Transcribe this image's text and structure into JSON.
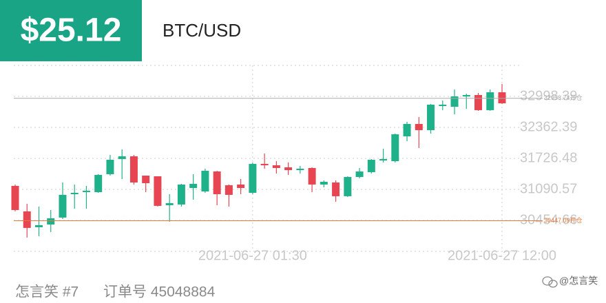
{
  "header": {
    "price": "$25.12",
    "symbol": "BTC/USD"
  },
  "footer": {
    "user": "怎言笑 #7",
    "order": "订单号 45048884",
    "watermark": "@怎言笑"
  },
  "chart_data": {
    "type": "candlestick",
    "categories": [
      null,
      null,
      null,
      null,
      null,
      null,
      null,
      null,
      null,
      null,
      null,
      null,
      null,
      null,
      null,
      null,
      null,
      null,
      null,
      null,
      "2021-06-27 01:30",
      null,
      null,
      null,
      null,
      null,
      null,
      null,
      null,
      null,
      null,
      null,
      null,
      null,
      null,
      null,
      null,
      null,
      null,
      null,
      null,
      "2021-06-27 12:00"
    ],
    "open": [
      31162,
      30639,
      30314,
      30370,
      30512,
      30992,
      31048,
      31034,
      31402,
      31713,
      31769,
      31373,
      31359,
      30766,
      30780,
      31119,
      31048,
      31458,
      31176,
      31190,
      31020,
      31614,
      31585,
      31543,
      31486,
      31529,
      31190,
      31232,
      30950,
      31345,
      31444,
      31684,
      31670,
      32179,
      32433,
      32306,
      32801,
      32786,
      32998,
      33027,
      32716,
      33083
    ],
    "high": [
      31190,
      30794,
      30738,
      30667,
      31232,
      31190,
      31162,
      31402,
      31797,
      31910,
      31797,
      31373,
      31359,
      30992,
      31204,
      31402,
      31515,
      31472,
      31190,
      31303,
      31642,
      31826,
      31670,
      31642,
      31571,
      31543,
      31275,
      31275,
      31359,
      31529,
      31713,
      31925,
      32235,
      32476,
      32575,
      32843,
      32914,
      33140,
      33055,
      33069,
      33140,
      33253
    ],
    "low": [
      30639,
      30102,
      30130,
      30215,
      30483,
      30695,
      30695,
      31020,
      31373,
      31303,
      31190,
      31034,
      30738,
      30427,
      30738,
      30879,
      31020,
      30766,
      30738,
      30992,
      30992,
      31515,
      31416,
      31388,
      31416,
      31034,
      31133,
      30837,
      30935,
      31317,
      31416,
      31642,
      31642,
      32080,
      31939,
      32235,
      32716,
      32631,
      32744,
      32702,
      32702,
      32843
    ],
    "close": [
      30667,
      30300,
      30356,
      30497,
      30978,
      31020,
      31063,
      31388,
      31698,
      31769,
      31232,
      31218,
      30752,
      30808,
      31190,
      31204,
      31472,
      30992,
      30978,
      31119,
      31614,
      31585,
      31529,
      31486,
      31515,
      31190,
      31246,
      30950,
      31345,
      31458,
      31698,
      31713,
      32221,
      32433,
      32306,
      32829,
      32829,
      32998,
      33027,
      32716,
      33083,
      32857
    ],
    "up_color": "#1fb28a",
    "down_color": "#e84552",
    "ylim": [
      29818.75,
      33634.21
    ],
    "yticks": [
      30454.66,
      31090.57,
      31726.48,
      32362.39,
      32998.39
    ],
    "grid": true,
    "lines": [
      {
        "value": 32958.74,
        "label": "32958.74开仓",
        "color": "#aaaaaa"
      },
      {
        "value": 30447.09,
        "label": "30447.09开仓",
        "color": "#e8793a"
      }
    ]
  }
}
